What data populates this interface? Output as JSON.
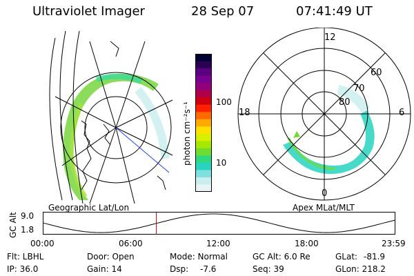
{
  "header": {
    "title": "Ultraviolet Imager",
    "date": "28 Sep 07",
    "time": "07:41:49 UT"
  },
  "colorbar": {
    "unit_label": "photon cm⁻²s⁻¹",
    "ticks": [
      "100",
      "10"
    ],
    "colors": [
      "#000033",
      "#2a0050",
      "#5a0080",
      "#7a0090",
      "#90007a",
      "#b0004a",
      "#d00010",
      "#ff2000",
      "#ff6a00",
      "#ffaa00",
      "#ffe000",
      "#d8f000",
      "#a8e800",
      "#70dc30",
      "#30d880",
      "#28d4c0",
      "#80e0e0",
      "#c8eeee",
      "#e8f4f4"
    ]
  },
  "left_map": {
    "label": "Geographic Lat/Lon"
  },
  "right_map": {
    "label": "Apex MLat/MLT",
    "mlt_labels": {
      "top": "12",
      "left": "18",
      "right": "6",
      "bottom": "0"
    },
    "lat_labels": [
      "60",
      "70",
      "80"
    ]
  },
  "timeline": {
    "ylabel": "GC Alt",
    "yticks": [
      "9.0",
      "1.8"
    ],
    "xticks": [
      "00:00",
      "06:00",
      "12:00",
      "18:00",
      "23:59"
    ],
    "current_time_hours": 7.697,
    "marker_color": "#cc0000"
  },
  "info": {
    "flt": "Flt: LBHL",
    "ip": "IP: 36.0",
    "door": "Door: Open",
    "gain": "Gain: 14",
    "mode": "Mode: Normal",
    "dsp_label": "Dsp:",
    "dsp_value": "-7.6",
    "gc_alt": "GC Alt: 6.0 Re",
    "seq": "Seq: 39",
    "glat_label": "GLat:",
    "glat_value": "-81.9",
    "glon": "GLon: 218.2"
  }
}
